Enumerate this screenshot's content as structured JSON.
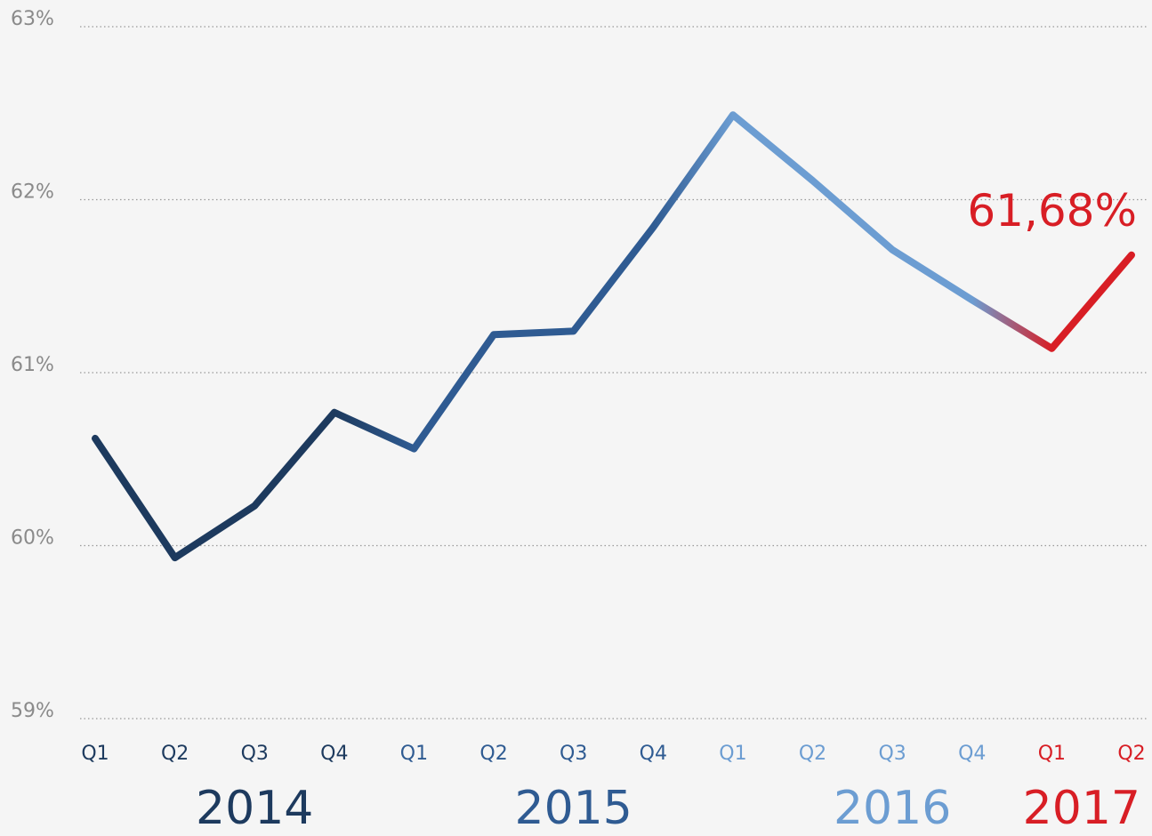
{
  "chart_data": {
    "type": "line",
    "years": [
      {
        "label": "2014",
        "color": "#1d3a5e",
        "quarters": [
          "Q1",
          "Q2",
          "Q3",
          "Q4"
        ]
      },
      {
        "label": "2015",
        "color": "#2f5b92",
        "quarters": [
          "Q1",
          "Q2",
          "Q3",
          "Q4"
        ]
      },
      {
        "label": "2016",
        "color": "#6c9dd2",
        "quarters": [
          "Q1",
          "Q2",
          "Q3",
          "Q4"
        ]
      },
      {
        "label": "2017",
        "color": "#d81e25",
        "quarters": [
          "Q1",
          "Q2"
        ]
      }
    ],
    "values": [
      60.62,
      59.93,
      60.23,
      60.77,
      60.56,
      61.22,
      61.24,
      61.84,
      62.49,
      62.11,
      61.71,
      61.42,
      61.14,
      61.68
    ],
    "value_labels": [
      null,
      null,
      null,
      null,
      null,
      null,
      null,
      null,
      null,
      null,
      null,
      null,
      null,
      "61,68%"
    ],
    "ylim": [
      59,
      63
    ],
    "yticks": [
      {
        "value": 59,
        "label": "59%"
      },
      {
        "value": 60,
        "label": "60%"
      },
      {
        "value": 61,
        "label": "61%"
      },
      {
        "value": 62,
        "label": "62%"
      },
      {
        "value": 63,
        "label": "63%"
      }
    ],
    "grid": true
  }
}
